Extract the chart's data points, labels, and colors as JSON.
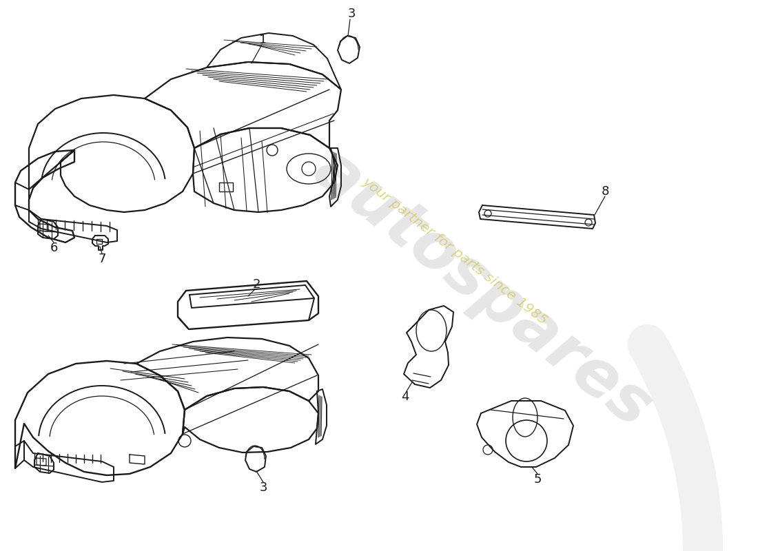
{
  "background_color": "#ffffff",
  "line_color": "#1a1a1a",
  "line_width": 1.4,
  "label_fontsize": 13,
  "watermark1": "autospares",
  "watermark2": "your partner for parts since 1985",
  "watermark_color1": "#c8c8c8",
  "watermark_color2": "#d4c860",
  "fig_width": 11.0,
  "fig_height": 8.0,
  "dpi": 100,
  "xlim": [
    0,
    1100
  ],
  "ylim": [
    0,
    800
  ],
  "swoosh_color": "#d0d0d0"
}
